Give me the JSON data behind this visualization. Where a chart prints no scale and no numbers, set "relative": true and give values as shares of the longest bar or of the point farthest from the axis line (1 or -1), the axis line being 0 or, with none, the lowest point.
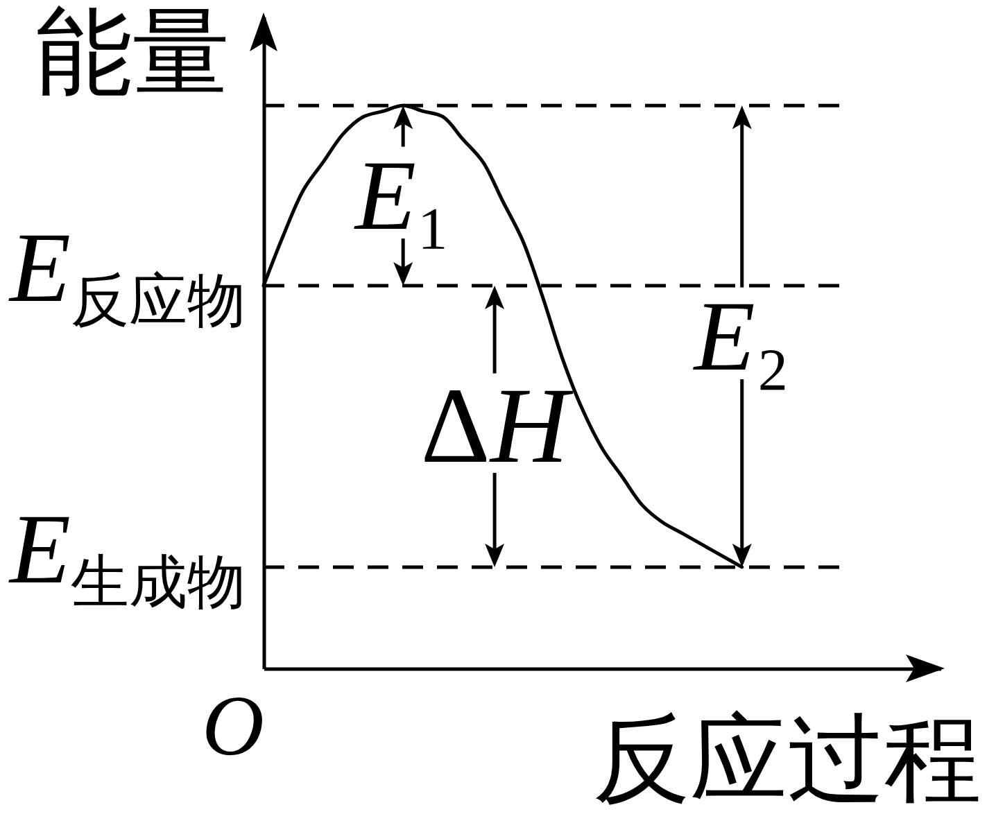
{
  "chart_data": {
    "type": "line",
    "relative": true,
    "xlabel": "反应过程",
    "ylabel": "能量",
    "categories": [
      null,
      null,
      null,
      null,
      null,
      null,
      null,
      null,
      null,
      null,
      null,
      null,
      null,
      null,
      null,
      null,
      null,
      null,
      null,
      null,
      null,
      null,
      null,
      null,
      null
    ],
    "series": [
      {
        "color": "#000000",
        "values": [
          0.68,
          0.77,
          0.85,
          0.9,
          0.95,
          0.98,
          0.99,
          1,
          0.99,
          0.98,
          0.94,
          0.9,
          0.83,
          0.76,
          0.66,
          0.55,
          0.46,
          0.39,
          0.34,
          0.29,
          0.26,
          0.24,
          0.22,
          0.2,
          0.18
        ]
      }
    ],
    "ref_lines": [
      {
        "axis": "y",
        "value": 1,
        "line_style": "dashed",
        "color": "#000000"
      },
      {
        "axis": "y",
        "value": 0.68,
        "label": "E$_{反应物}$",
        "line_style": "dashed",
        "color": "#000000"
      },
      {
        "axis": "y",
        "value": 0.18,
        "label": "E$_{生成物}$",
        "line_style": "dashed",
        "color": "#000000"
      }
    ],
    "annotations": [
      "E₁",
      "ΔH",
      "E₂",
      "O"
    ]
  }
}
